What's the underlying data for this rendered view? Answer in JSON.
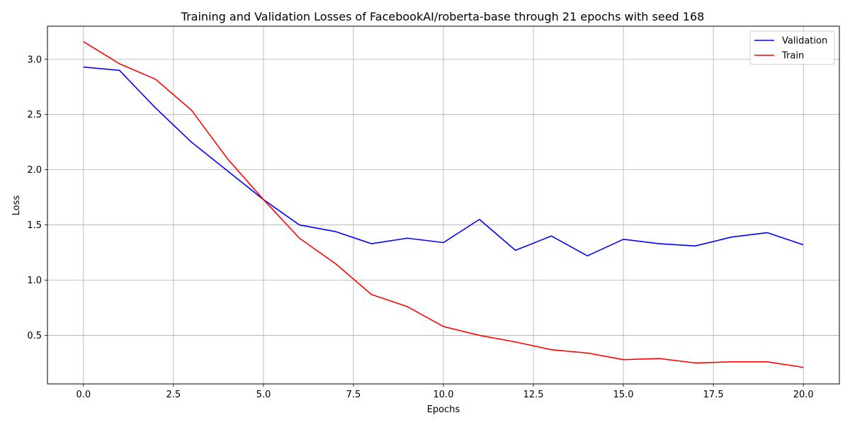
{
  "chart_data": {
    "type": "line",
    "title": "Training and Validation Losses of FacebookAI/roberta-base through 21 epochs with seed 168",
    "xlabel": "Epochs",
    "ylabel": "Loss",
    "xlim": [
      -1,
      21
    ],
    "ylim": [
      0.06,
      3.3
    ],
    "xticks": [
      0.0,
      2.5,
      5.0,
      7.5,
      10.0,
      12.5,
      15.0,
      17.5,
      20.0
    ],
    "xtick_labels": [
      "0.0",
      "2.5",
      "5.0",
      "7.5",
      "10.0",
      "12.5",
      "15.0",
      "17.5",
      "20.0"
    ],
    "yticks": [
      0.5,
      1.0,
      1.5,
      2.0,
      2.5,
      3.0
    ],
    "ytick_labels": [
      "0.5",
      "1.0",
      "1.5",
      "2.0",
      "2.5",
      "3.0"
    ],
    "grid": true,
    "legend_position": "top-right",
    "x": [
      0,
      1,
      2,
      3,
      4,
      5,
      6,
      7,
      8,
      9,
      10,
      11,
      12,
      13,
      14,
      15,
      16,
      17,
      18,
      19,
      20
    ],
    "series": [
      {
        "name": "Validation",
        "color": "#0000ff",
        "values": [
          2.93,
          2.9,
          2.56,
          2.25,
          1.99,
          1.73,
          1.5,
          1.44,
          1.33,
          1.38,
          1.34,
          1.55,
          1.27,
          1.4,
          1.22,
          1.37,
          1.33,
          1.31,
          1.39,
          1.43,
          1.32
        ]
      },
      {
        "name": "Train",
        "color": "#ff0000",
        "values": [
          3.16,
          2.96,
          2.82,
          2.54,
          2.1,
          1.73,
          1.38,
          1.15,
          0.87,
          0.76,
          0.58,
          0.5,
          0.44,
          0.37,
          0.34,
          0.28,
          0.29,
          0.25,
          0.26,
          0.26,
          0.21
        ]
      }
    ]
  }
}
